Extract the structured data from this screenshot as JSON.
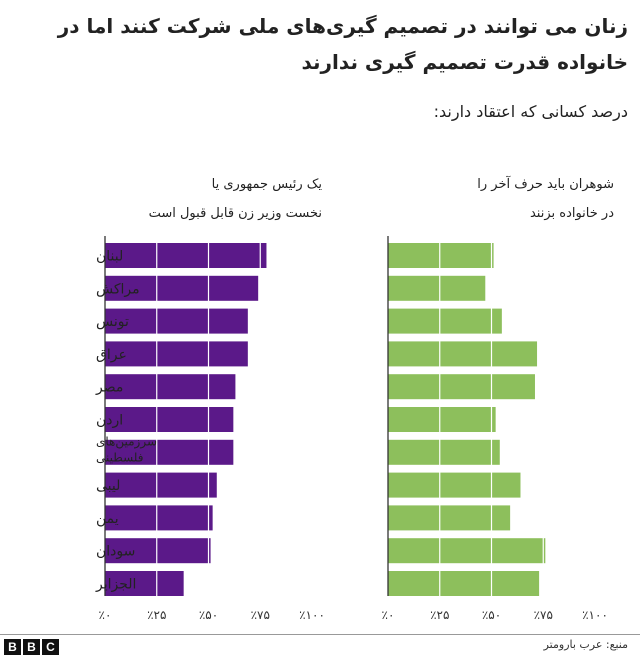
{
  "header": {
    "title": "زنان می توانند در تصمیم گیری‌های ملی شرکت کنند اما در خانواده قدرت تصمیم گیری ندارند",
    "subtitle": "درصد کسانی که اعتقاد دارند:"
  },
  "footer": {
    "source": "منبع: عرب بارومتر",
    "logo_letters": [
      "B",
      "B",
      "C"
    ]
  },
  "colors": {
    "purple": "#5b1989",
    "green": "#8dbf5c",
    "axis": "#333333",
    "grid": "#ffffff"
  },
  "chart_data": [
    {
      "type": "bar",
      "orientation": "horizontal",
      "panel": "left",
      "title_lines": [
        "یک رئیس جمهوری یا",
        "نخست وزیر زن قابل قبول است"
      ],
      "categories": [
        "لبنان",
        "مراکش",
        "تونس",
        "عراق",
        "مصر",
        "اردن",
        "سرزمین‌های فلسطینی",
        "لیبی",
        "یمن",
        "سودان",
        "الجزایر"
      ],
      "category_label_lines": [
        [
          "لبنان"
        ],
        [
          "مراکش"
        ],
        [
          "تونس"
        ],
        [
          "عراق"
        ],
        [
          "مصر"
        ],
        [
          "اردن"
        ],
        [
          "سرزمین‌های",
          "فلسطینی"
        ],
        [
          "لیبی"
        ],
        [
          "یمن"
        ],
        [
          "سودان"
        ],
        [
          "الجزایر"
        ]
      ],
      "values": [
        78,
        74,
        69,
        69,
        63,
        62,
        62,
        54,
        52,
        51,
        38
      ],
      "xlim": [
        0,
        100
      ],
      "xticks": [
        0,
        25,
        50,
        75,
        100
      ],
      "xtick_labels": [
        "٪۰",
        "٪۲۵",
        "٪۵۰",
        "٪۷۵",
        "٪۱۰۰"
      ],
      "grid": true,
      "color": "#5b1989"
    },
    {
      "type": "bar",
      "orientation": "horizontal",
      "panel": "right",
      "title_lines": [
        "شوهران باید حرف آخر را",
        "در خانواده بزنند"
      ],
      "categories": [
        "لبنان",
        "مراکش",
        "تونس",
        "عراق",
        "مصر",
        "اردن",
        "سرزمین‌های فلسطینی",
        "لیبی",
        "یمن",
        "سودان",
        "الجزایر"
      ],
      "values": [
        51,
        47,
        55,
        72,
        71,
        52,
        54,
        64,
        59,
        76,
        73
      ],
      "xlim": [
        0,
        100
      ],
      "xticks": [
        0,
        25,
        50,
        75,
        100
      ],
      "xtick_labels": [
        "٪۰",
        "٪۲۵",
        "٪۵۰",
        "٪۷۵",
        "٪۱۰۰"
      ],
      "grid": true,
      "color": "#8dbf5c"
    }
  ]
}
